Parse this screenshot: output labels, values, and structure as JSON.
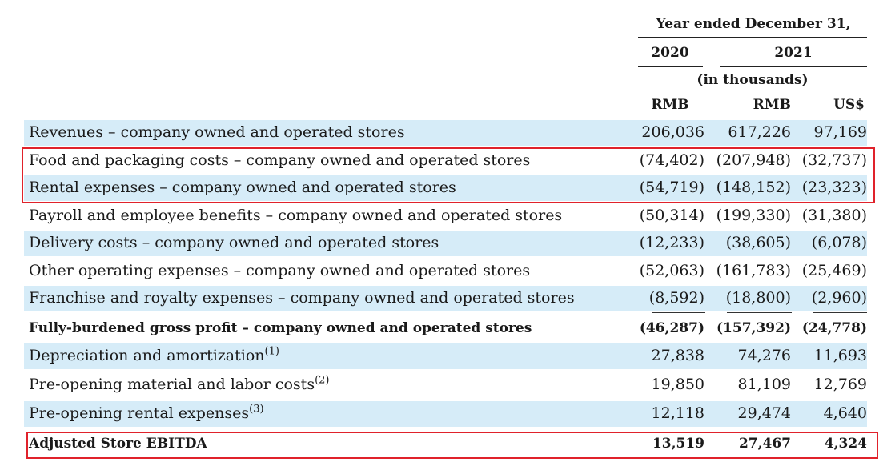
{
  "header": {
    "period_title": "Year ended December 31,",
    "year_2020": "2020",
    "year_2021": "2021",
    "unit_note": "(in thousands)",
    "cur_rmb_2020": "RMB",
    "cur_rmb_2021": "RMB",
    "cur_usd": "US$"
  },
  "rows": [
    {
      "label": "Revenues – company owned and operated stores",
      "v1": "206,036",
      "v2": "617,226",
      "v3": "97,169"
    },
    {
      "label": "Food and packaging costs – company owned and operated stores",
      "v1": "(74,402)",
      "v2": "(207,948)",
      "v3": "(32,737)"
    },
    {
      "label": "Rental expenses – company owned and operated stores",
      "v1": "(54,719)",
      "v2": "(148,152)",
      "v3": "(23,323)"
    },
    {
      "label": "Payroll and employee benefits – company owned and operated stores",
      "v1": "(50,314)",
      "v2": "(199,330)",
      "v3": "(31,380)"
    },
    {
      "label": "Delivery costs – company owned and operated stores",
      "v1": "(12,233)",
      "v2": "(38,605)",
      "v3": "(6,078)"
    },
    {
      "label": "Other operating expenses – company owned and operated stores",
      "v1": "(52,063)",
      "v2": "(161,783)",
      "v3": "(25,469)"
    },
    {
      "label": "Franchise and royalty expenses – company owned and operated stores",
      "v1": "(8,592)",
      "v2": "(18,800)",
      "v3": "(2,960)"
    },
    {
      "label": "Fully-burdened gross profit – company owned and operated stores",
      "v1": "(46,287)",
      "v2": "(157,392)",
      "v3": "(24,778)"
    },
    {
      "label": "Depreciation and amortization",
      "sup": "(1)",
      "v1": "27,838",
      "v2": "74,276",
      "v3": "11,693"
    },
    {
      "label": "Pre-opening material and labor costs",
      "sup": "(2)",
      "v1": "19,850",
      "v2": "81,109",
      "v3": "12,769"
    },
    {
      "label": "Pre-opening rental expenses",
      "sup": "(3)",
      "v1": "12,118",
      "v2": "29,474",
      "v3": "4,640"
    },
    {
      "label": "Adjusted Store EBITDA",
      "v1": "13,519",
      "v2": "27,467",
      "v3": "4,324"
    }
  ],
  "colors": {
    "row_shade": "#d6ecf8",
    "highlight_box": "#e0222b"
  }
}
